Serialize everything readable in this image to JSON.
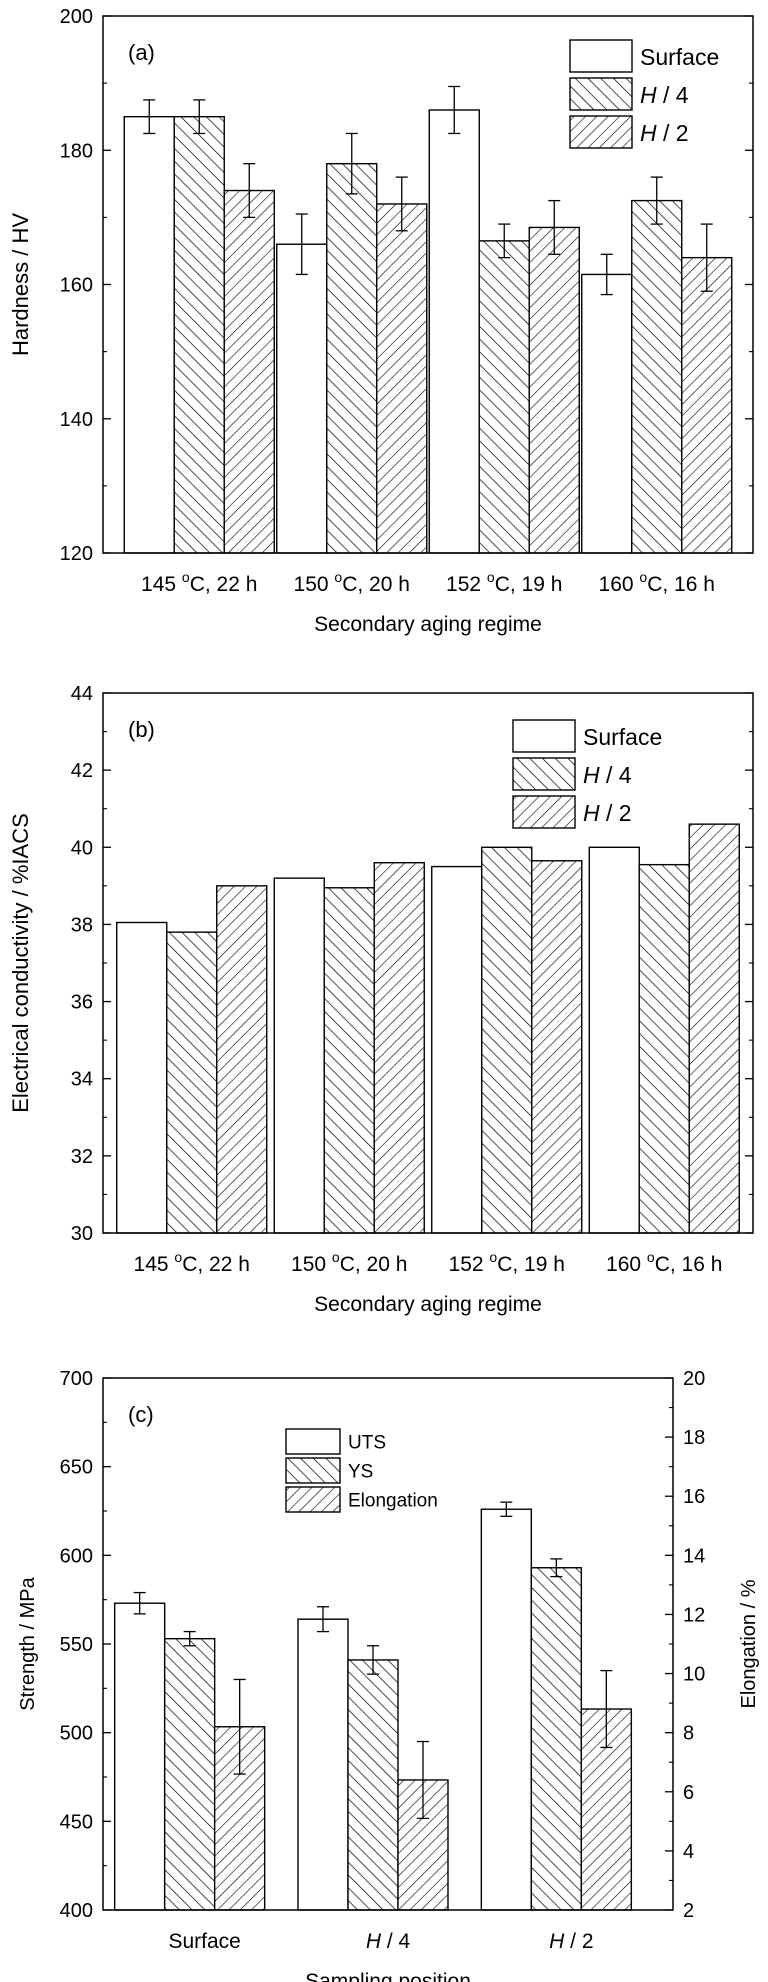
{
  "chart_data": [
    {
      "type": "bar",
      "panel_label": "(a)",
      "categories": [
        "145 ºC, 22 h",
        "150 ºC, 20 h",
        "152 ºC, 19 h",
        "160 ºC, 16 h"
      ],
      "category_parts": [
        {
          "temp": "145 ",
          "unit": "C, 22 h"
        },
        {
          "temp": "150 ",
          "unit": "C, 20 h"
        },
        {
          "temp": "152 ",
          "unit": "C, 19 h"
        },
        {
          "temp": "160 ",
          "unit": "C, 16 h"
        }
      ],
      "degree_mark": "o",
      "series": [
        {
          "name": "Surface",
          "values": [
            185,
            166,
            186,
            161.5
          ],
          "errors": [
            2.5,
            4.5,
            3.5,
            3.0
          ]
        },
        {
          "name": "H / 4",
          "values": [
            185,
            178,
            166.5,
            172.5
          ],
          "errors": [
            2.5,
            4.5,
            2.5,
            3.5
          ]
        },
        {
          "name": "H / 2",
          "values": [
            174,
            172,
            168.5,
            164
          ],
          "errors": [
            4.0,
            4.0,
            4.0,
            5.0
          ]
        }
      ],
      "series_label_parts": [
        {
          "main": "Surface",
          "italic": ""
        },
        {
          "main": " / 4",
          "italic": "H"
        },
        {
          "main": " / 2",
          "italic": "H"
        }
      ],
      "xlabel": "Secondary aging regime",
      "ylabel": "Hardness / HV",
      "ylim": [
        120,
        200
      ],
      "yticks": [
        120,
        140,
        160,
        180,
        200
      ],
      "legend": "top-right",
      "grid": false
    },
    {
      "type": "bar",
      "panel_label": "(b)",
      "categories": [
        "145 ºC, 22 h",
        "150 ºC, 20 h",
        "152 ºC, 19 h",
        "160 ºC, 16 h"
      ],
      "category_parts": [
        {
          "temp": "145 ",
          "unit": "C, 22 h"
        },
        {
          "temp": "150 ",
          "unit": "C, 20 h"
        },
        {
          "temp": "152 ",
          "unit": "C, 19 h"
        },
        {
          "temp": "160 ",
          "unit": "C, 16 h"
        }
      ],
      "degree_mark": "o",
      "series": [
        {
          "name": "Surface",
          "values": [
            38.05,
            39.2,
            39.5,
            40.0
          ]
        },
        {
          "name": "H / 4",
          "values": [
            37.8,
            38.95,
            40.0,
            39.55
          ]
        },
        {
          "name": "H / 2",
          "values": [
            39.0,
            39.6,
            39.65,
            40.6
          ]
        }
      ],
      "series_label_parts": [
        {
          "main": "Surface",
          "italic": ""
        },
        {
          "main": " / 4",
          "italic": "H"
        },
        {
          "main": " / 2",
          "italic": "H"
        }
      ],
      "xlabel": "Secondary aging regime",
      "ylabel": "Electrical conductivity / %IACS",
      "ylim": [
        30,
        44
      ],
      "yticks": [
        30,
        32,
        34,
        36,
        38,
        40,
        42,
        44
      ],
      "legend": "top-right",
      "grid": false
    },
    {
      "type": "bar",
      "panel_label": "(c)",
      "categories": [
        "Surface",
        "H / 4",
        "H / 2"
      ],
      "category_parts": [
        {
          "italic": "",
          "main": "Surface"
        },
        {
          "italic": "H",
          "main": " / 4"
        },
        {
          "italic": "H",
          "main": " / 2"
        }
      ],
      "series": [
        {
          "name": "UTS",
          "axis": "left",
          "values": [
            573,
            564,
            626
          ],
          "errors": [
            6,
            7,
            4
          ]
        },
        {
          "name": "YS",
          "axis": "left",
          "values": [
            553,
            541,
            593
          ],
          "errors": [
            4,
            8,
            5
          ]
        },
        {
          "name": "Elongation",
          "axis": "right",
          "values": [
            8.2,
            6.4,
            8.8
          ],
          "errors": [
            1.6,
            1.3,
            1.3
          ]
        }
      ],
      "xlabel": "Sampling position",
      "ylabel": "Strength / MPa",
      "y2label": "Elongation / %",
      "ylim": [
        400,
        700
      ],
      "yticks": [
        400,
        450,
        500,
        550,
        600,
        650,
        700
      ],
      "y2lim": [
        2,
        20
      ],
      "y2ticks": [
        2,
        4,
        6,
        8,
        10,
        12,
        14,
        16,
        18,
        20
      ],
      "legend": "top-center",
      "grid": false
    }
  ]
}
